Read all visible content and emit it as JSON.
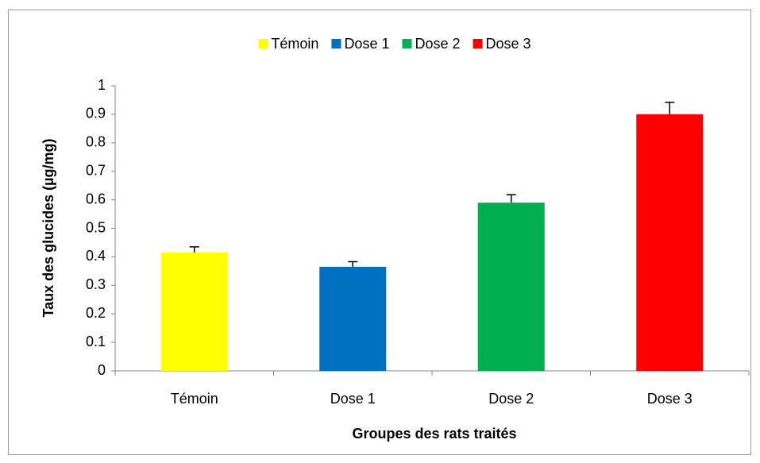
{
  "chart_data": {
    "type": "bar",
    "categories": [
      "Témoin",
      "Dose 1",
      "Dose 2",
      "Dose 3"
    ],
    "values": [
      0.415,
      0.365,
      0.59,
      0.9
    ],
    "errors": [
      0.02,
      0.018,
      0.028,
      0.042
    ],
    "colors": [
      "#ffff00",
      "#0070c0",
      "#00b050",
      "#ff0000"
    ],
    "xlabel": "Groupes des rats traités",
    "ylabel": "Taux des glucides (µg/mg)",
    "ylim": [
      0,
      1
    ],
    "yticks": [
      0,
      0.1,
      0.2,
      0.3,
      0.4,
      0.5,
      0.6,
      0.7,
      0.8,
      0.9,
      1
    ],
    "grid": false,
    "legend": "top"
  }
}
